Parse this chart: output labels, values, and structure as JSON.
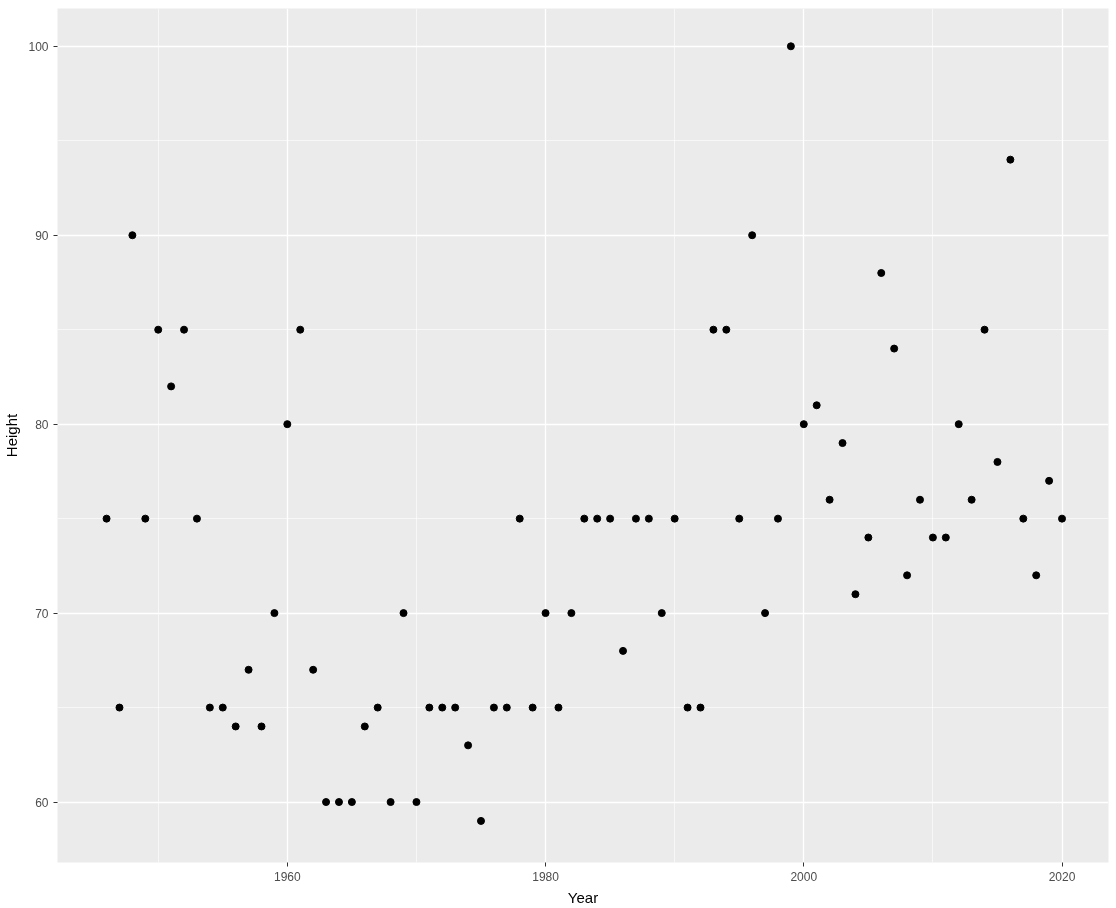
{
  "chart_data": {
    "type": "scatter",
    "xlabel": "Year",
    "ylabel": "Height",
    "x": [
      1946,
      1947,
      1948,
      1949,
      1950,
      1951,
      1952,
      1953,
      1954,
      1955,
      1956,
      1957,
      1958,
      1959,
      1960,
      1961,
      1962,
      1963,
      1964,
      1965,
      1966,
      1967,
      1968,
      1969,
      1970,
      1971,
      1972,
      1973,
      1974,
      1975,
      1976,
      1977,
      1978,
      1979,
      1980,
      1981,
      1982,
      1983,
      1984,
      1985,
      1986,
      1987,
      1988,
      1989,
      1990,
      1991,
      1992,
      1993,
      1994,
      1995,
      1996,
      1997,
      1998,
      1999,
      2000,
      2001,
      2002,
      2003,
      2004,
      2005,
      2006,
      2007,
      2008,
      2009,
      2010,
      2011,
      2012,
      2013,
      2014,
      2015,
      2016,
      2017,
      2018,
      2019,
      2020
    ],
    "series": [
      {
        "color": "#000000",
        "values": [
          75,
          65,
          90,
          75,
          85,
          82,
          85,
          75,
          65,
          65,
          64,
          67,
          64,
          70,
          80,
          85,
          67,
          60,
          60,
          60,
          64,
          65,
          60,
          70,
          60,
          65,
          65,
          65,
          63,
          59,
          65,
          65,
          75,
          65,
          70,
          65,
          70,
          75,
          75,
          75,
          68,
          75,
          75,
          70,
          75,
          65,
          65,
          85,
          85,
          75,
          90,
          70,
          75,
          100,
          80,
          81,
          76,
          79,
          71,
          74,
          88,
          84,
          72,
          76,
          74,
          74,
          80,
          76,
          85,
          78,
          94,
          75,
          72,
          77,
          75
        ]
      }
    ],
    "xlim": [
      1942.2,
      2023.6
    ],
    "ylim": [
      56.8,
      102
    ],
    "xticks": [
      1960,
      1980,
      2000,
      2020
    ],
    "yticks": [
      60,
      70,
      80,
      90,
      100
    ],
    "grid": true,
    "marker": "circle"
  }
}
